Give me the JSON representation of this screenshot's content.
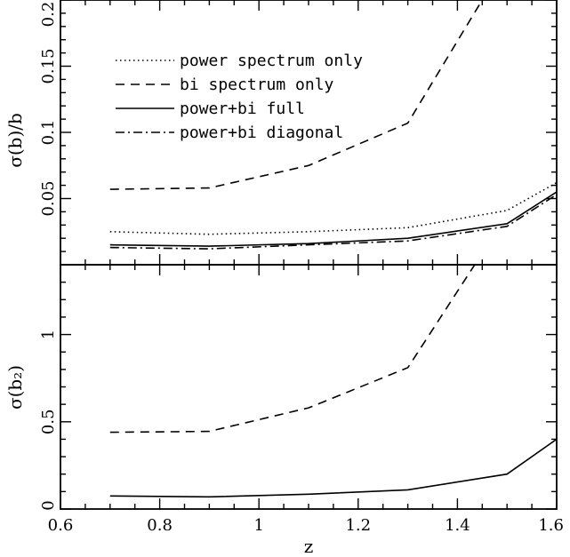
{
  "chart_data": [
    {
      "type": "line",
      "panel": "top",
      "ylabel": "σ(b)/b",
      "xlabel": "",
      "xlim": [
        0.6,
        1.6
      ],
      "ylim": [
        0,
        0.2
      ],
      "yticks": [
        0.05,
        0.1,
        0.15,
        0.2
      ],
      "ytick_labels": [
        "0.05",
        "0.1",
        "0.15",
        "0.2"
      ],
      "legend_placement": "top-left",
      "series": [
        {
          "name": "power spectrum only",
          "style": "dotted",
          "x": [
            0.7,
            0.9,
            1.1,
            1.3,
            1.5,
            1.6
          ],
          "y": [
            0.025,
            0.023,
            0.025,
            0.028,
            0.041,
            0.062
          ]
        },
        {
          "name": "bi spectrum only",
          "style": "dashed",
          "x": [
            0.7,
            0.9,
            1.1,
            1.3,
            1.45
          ],
          "y": [
            0.057,
            0.058,
            0.075,
            0.107,
            0.2
          ]
        },
        {
          "name": "power+bi full",
          "style": "solid",
          "x": [
            0.7,
            0.9,
            1.1,
            1.3,
            1.5,
            1.6
          ],
          "y": [
            0.015,
            0.014,
            0.016,
            0.02,
            0.031,
            0.055
          ]
        },
        {
          "name": "power+bi diagonal",
          "style": "dashdot",
          "x": [
            0.7,
            0.9,
            1.1,
            1.3,
            1.5,
            1.6
          ],
          "y": [
            0.013,
            0.012,
            0.015,
            0.018,
            0.029,
            0.053
          ]
        }
      ]
    },
    {
      "type": "line",
      "panel": "bottom",
      "ylabel": "σ(b₂)",
      "xlabel": "z",
      "xlim": [
        0.6,
        1.6
      ],
      "ylim": [
        0,
        1.4
      ],
      "xticks": [
        0.6,
        0.8,
        1,
        1.2,
        1.4,
        1.6
      ],
      "xtick_labels": [
        "0.6",
        "0.8",
        "1",
        "1.2",
        "1.4",
        "1.6"
      ],
      "yticks": [
        0,
        0.5,
        1
      ],
      "ytick_labels": [
        "0",
        "0.5",
        "1"
      ],
      "series": [
        {
          "style": "dashed",
          "x": [
            0.7,
            0.9,
            1.1,
            1.3,
            1.435
          ],
          "y": [
            0.44,
            0.445,
            0.58,
            0.81,
            1.4
          ]
        },
        {
          "style": "solid",
          "x": [
            0.7,
            0.9,
            1.1,
            1.3,
            1.5,
            1.6
          ],
          "y": [
            0.075,
            0.07,
            0.085,
            0.11,
            0.2,
            0.4
          ]
        }
      ]
    }
  ]
}
